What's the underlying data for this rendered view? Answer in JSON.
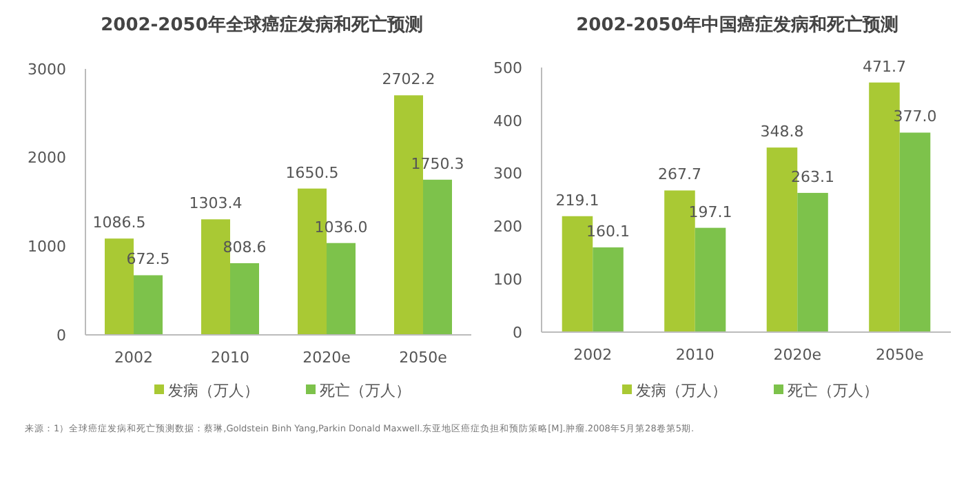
{
  "chart_data": [
    {
      "type": "bar",
      "title": "2002-2050年全球癌症发病和死亡预测",
      "categories": [
        "2002",
        "2010",
        "2020e",
        "2050e"
      ],
      "series": [
        {
          "name": "发病（万人）",
          "color": "#a9c934",
          "values": [
            1086.5,
            1303.4,
            1650.5,
            2702.2
          ],
          "value_labels": [
            "1086.5",
            "1303.4",
            "1650.5",
            "2702.2"
          ]
        },
        {
          "name": "死亡（万人）",
          "color": "#7dc24b",
          "values": [
            672.5,
            808.6,
            1036.0,
            1750.3
          ],
          "value_labels": [
            "672.5",
            "808.6",
            "1036.0",
            "1750.3"
          ]
        }
      ],
      "ylim": [
        0,
        3000
      ],
      "yticks": [
        0,
        1000,
        2000,
        3000
      ],
      "grid": false,
      "legend": "bottom",
      "annotations": [
        "来源：1）全球癌症发病和死亡预测数据：蔡琳,Goldstein Binh Yang,Parkin Donald Maxwell.东亚地区癌症负担和预防策略[M].肿瘤.2008年5月第28卷第5期."
      ]
    },
    {
      "type": "bar",
      "title": "2002-2050年中国癌症发病和死亡预测",
      "categories": [
        "2002",
        "2010",
        "2020e",
        "2050e"
      ],
      "series": [
        {
          "name": "发病（万人）",
          "color": "#a9c934",
          "values": [
            219.1,
            267.7,
            348.8,
            471.7
          ],
          "value_labels": [
            "219.1",
            "267.7",
            "348.8",
            "471.7"
          ]
        },
        {
          "name": "死亡（万人）",
          "color": "#7dc24b",
          "values": [
            160.1,
            197.1,
            263.1,
            377.0
          ],
          "value_labels": [
            "160.1",
            "197.1",
            "263.1",
            "377.0"
          ]
        }
      ],
      "ylim": [
        0,
        500
      ],
      "yticks": [
        0,
        100,
        200,
        300,
        400,
        500
      ],
      "grid": false,
      "legend": "bottom"
    }
  ]
}
